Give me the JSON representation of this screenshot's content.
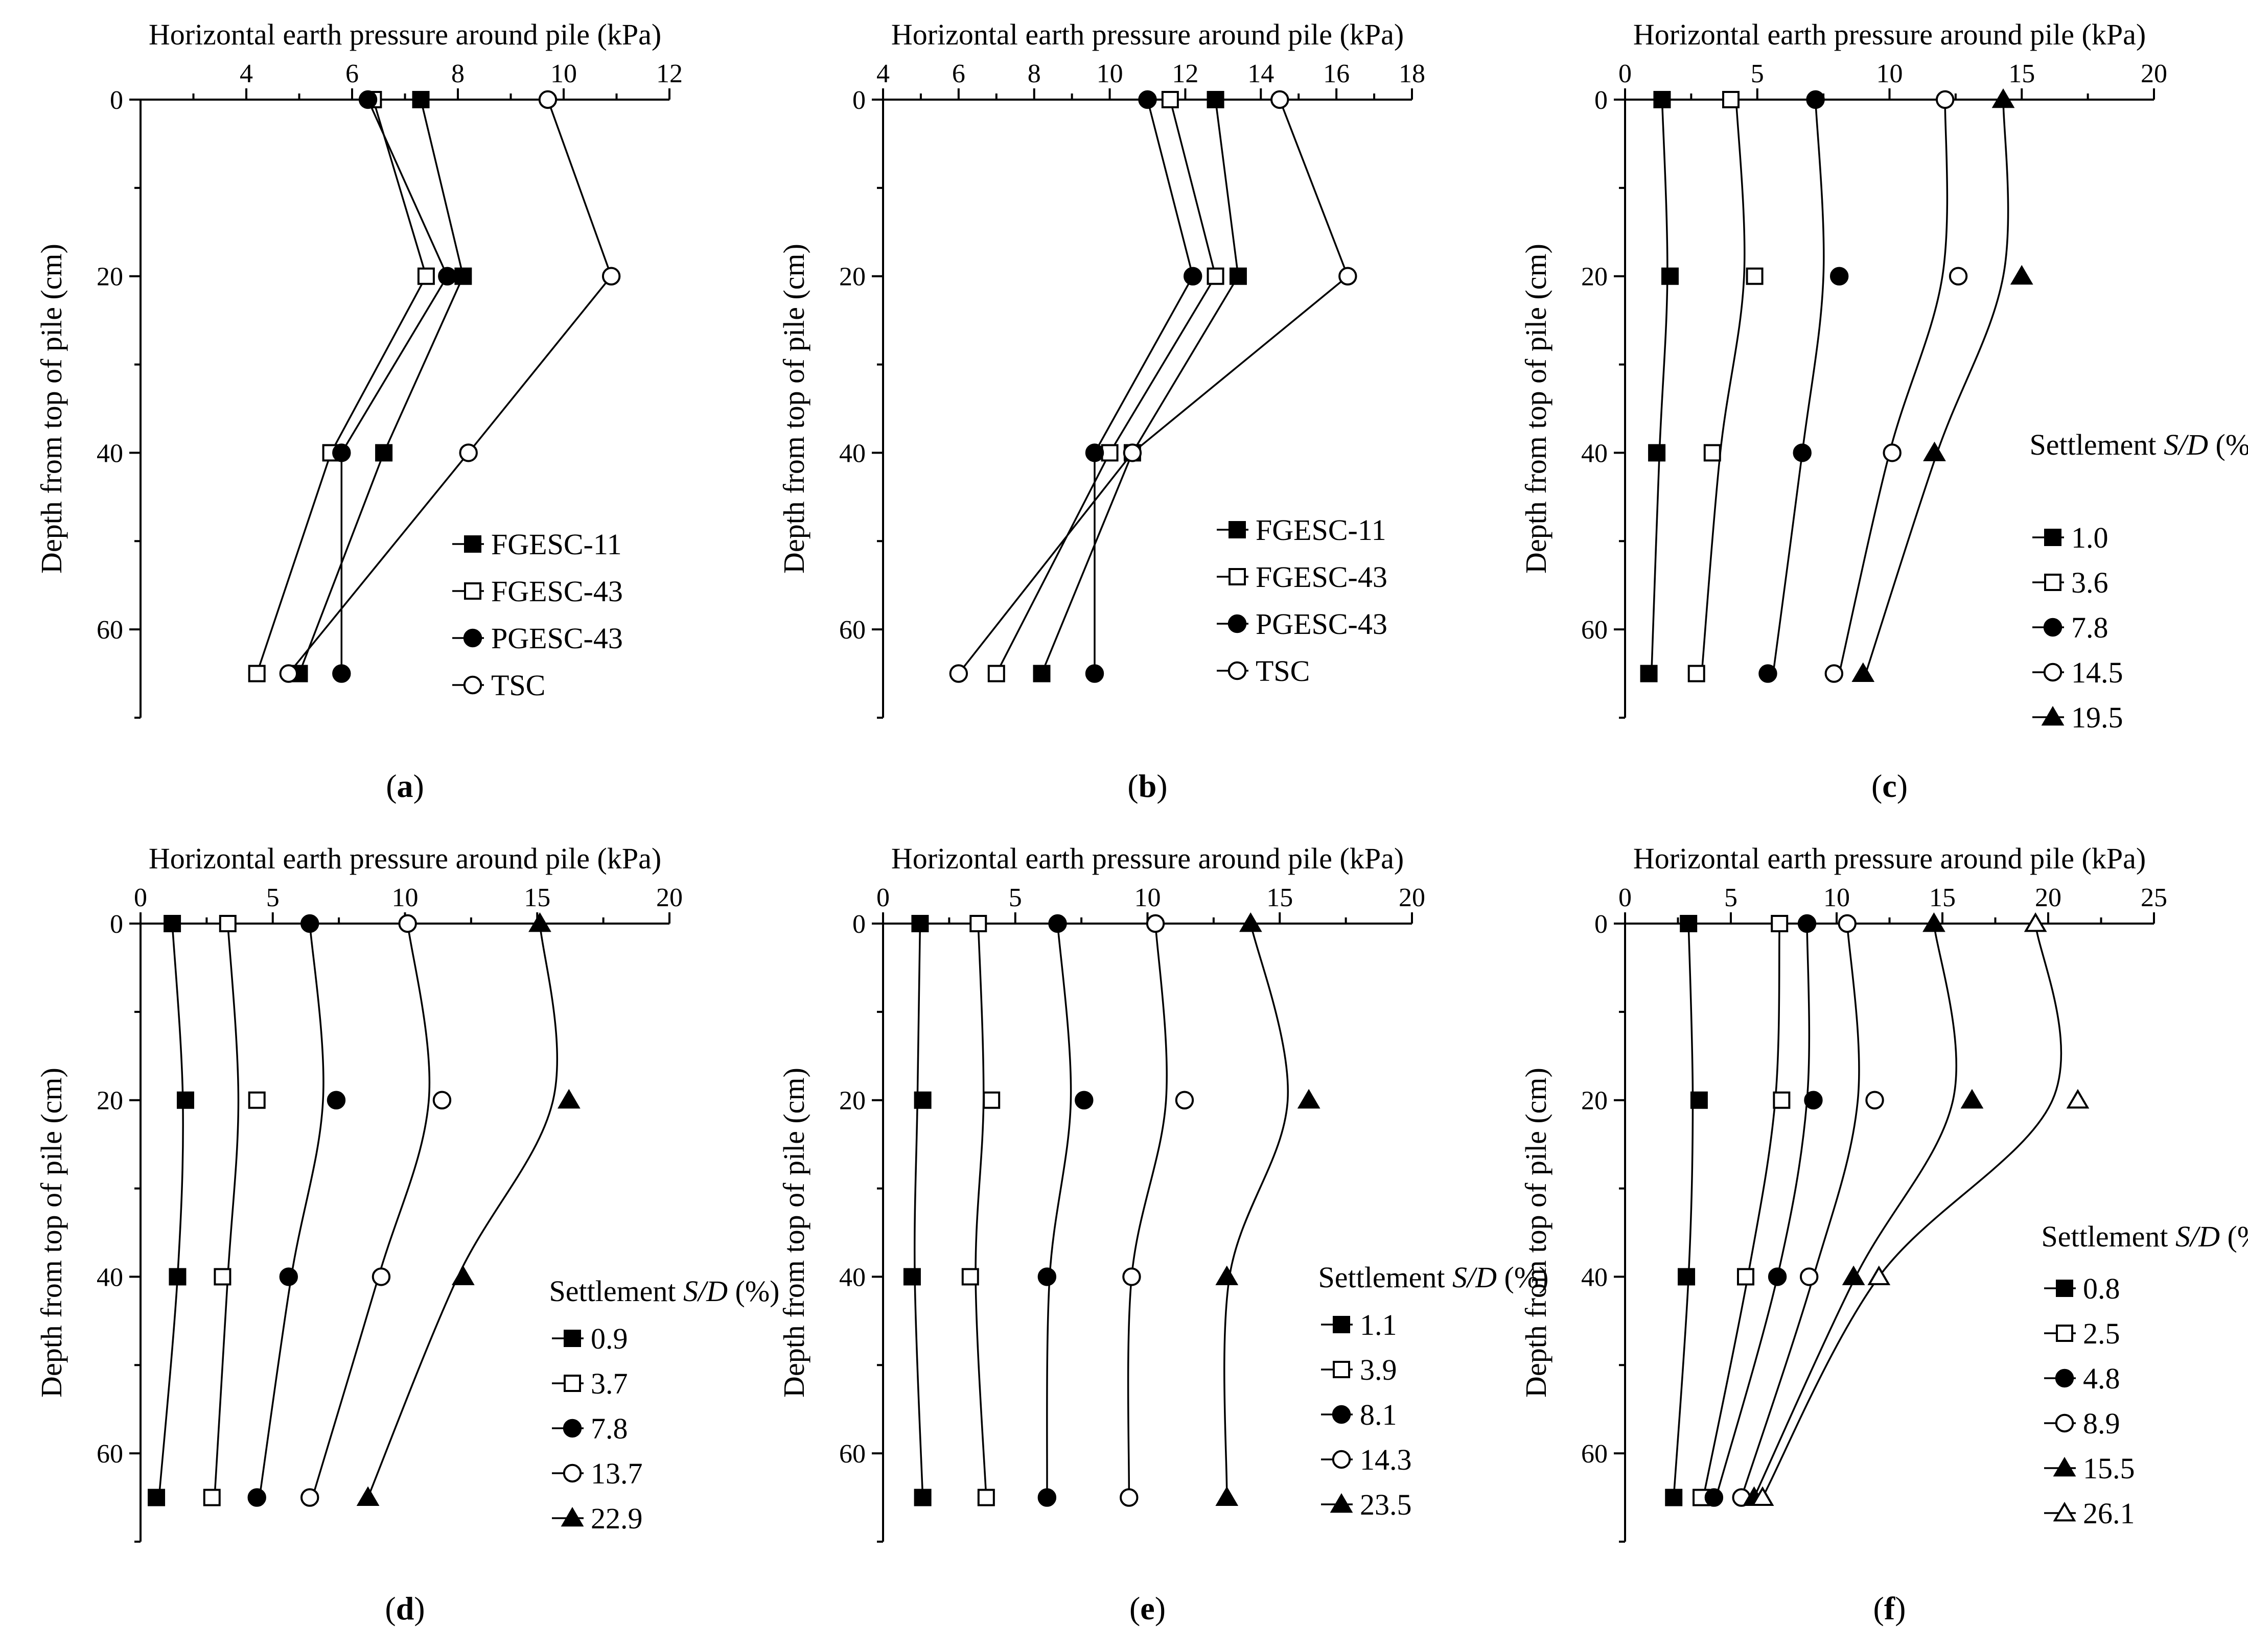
{
  "chart_data": [
    {
      "id": "a",
      "type": "line",
      "panel_label": "a",
      "title": "Horizontal earth pressure around pile (kPa)",
      "xlabel": "Horizontal earth pressure around pile (kPa)",
      "ylabel": "Depth from top of pile (cm)",
      "xlim": [
        2,
        12
      ],
      "xticks": [
        4,
        6,
        8,
        10,
        12
      ],
      "ylim": [
        0,
        70
      ],
      "yticks": [
        0,
        20,
        40,
        60
      ],
      "legend_title": "",
      "curve": "straight",
      "series": [
        {
          "name": "FGESC-11",
          "marker": "square-filled",
          "x": [
            7.3,
            8.1,
            6.6,
            5.0
          ],
          "y": [
            0,
            20,
            40,
            65
          ]
        },
        {
          "name": "FGESC-43",
          "marker": "square-open",
          "x": [
            6.4,
            7.4,
            5.6,
            4.2
          ],
          "y": [
            0,
            20,
            40,
            65
          ]
        },
        {
          "name": "PGESC-43",
          "marker": "circle-filled",
          "x": [
            6.3,
            7.8,
            5.8,
            5.8
          ],
          "y": [
            0,
            20,
            40,
            65
          ]
        },
        {
          "name": "TSC",
          "marker": "circle-open",
          "x": [
            9.7,
            10.9,
            8.2,
            4.8
          ],
          "y": [
            0,
            20,
            40,
            65
          ]
        }
      ]
    },
    {
      "id": "b",
      "type": "line",
      "panel_label": "b",
      "title": "Horizontal earth pressure around pile (kPa)",
      "xlabel": "Horizontal earth pressure around pile (kPa)",
      "ylabel": "Depth from top of pile (cm)",
      "xlim": [
        4,
        18
      ],
      "xticks": [
        4,
        6,
        8,
        10,
        12,
        14,
        16,
        18
      ],
      "ylim": [
        0,
        70
      ],
      "yticks": [
        0,
        20,
        40,
        60
      ],
      "legend_title": "",
      "curve": "straight",
      "series": [
        {
          "name": "FGESC-11",
          "marker": "square-filled",
          "x": [
            12.8,
            13.4,
            10.6,
            8.2
          ],
          "y": [
            0,
            20,
            40,
            65
          ]
        },
        {
          "name": "FGESC-43",
          "marker": "square-open",
          "x": [
            11.6,
            12.8,
            10.0,
            7.0
          ],
          "y": [
            0,
            20,
            40,
            65
          ]
        },
        {
          "name": "PGESC-43",
          "marker": "circle-filled",
          "x": [
            11.0,
            12.2,
            9.6,
            9.6
          ],
          "y": [
            0,
            20,
            40,
            65
          ]
        },
        {
          "name": "TSC",
          "marker": "circle-open",
          "x": [
            14.5,
            16.3,
            10.6,
            6.0
          ],
          "y": [
            0,
            20,
            40,
            65
          ]
        }
      ]
    },
    {
      "id": "c",
      "type": "scatter",
      "panel_label": "c",
      "title": "Horizontal earth pressure around pile (kPa)",
      "xlabel": "Horizontal earth pressure around pile (kPa)",
      "ylabel": "Depth from top of pile (cm)",
      "xlim": [
        0,
        20
      ],
      "xticks": [
        0,
        5,
        10,
        15,
        20
      ],
      "ylim": [
        0,
        70
      ],
      "yticks": [
        0,
        20,
        40,
        60
      ],
      "legend_title": "Settlement S/D (%)",
      "curve": "smooth",
      "series": [
        {
          "name": "1.0",
          "marker": "square-filled",
          "x": [
            1.4,
            1.7,
            1.2,
            0.9
          ],
          "y": [
            0,
            20,
            40,
            65
          ],
          "fit": [
            1.4,
            1.6,
            1.3,
            1.0
          ]
        },
        {
          "name": "3.6",
          "marker": "square-open",
          "x": [
            4.0,
            4.9,
            3.3,
            2.7
          ],
          "y": [
            0,
            20,
            40,
            65
          ],
          "fit": [
            4.2,
            4.5,
            3.6,
            2.9
          ]
        },
        {
          "name": "7.8",
          "marker": "circle-filled",
          "x": [
            7.2,
            8.1,
            6.7,
            5.4
          ],
          "y": [
            0,
            20,
            40,
            65
          ],
          "fit": [
            7.2,
            7.5,
            6.7,
            5.6
          ]
        },
        {
          "name": "14.5",
          "marker": "circle-open",
          "x": [
            12.1,
            12.6,
            10.1,
            7.9
          ],
          "y": [
            0,
            20,
            40,
            65
          ],
          "fit": [
            12.1,
            12.0,
            10.0,
            8.1
          ]
        },
        {
          "name": "19.5",
          "marker": "triangle-filled",
          "x": [
            14.3,
            15.0,
            11.7,
            9.0
          ],
          "y": [
            0,
            20,
            40,
            65
          ],
          "fit": [
            14.3,
            14.3,
            11.8,
            9.1
          ]
        }
      ]
    },
    {
      "id": "d",
      "type": "scatter",
      "panel_label": "d",
      "title": "Horizontal earth pressure around pile (kPa)",
      "xlabel": "Horizontal earth pressure around pile (kPa)",
      "ylabel": "Depth from top of pile (cm)",
      "xlim": [
        0,
        20
      ],
      "xticks": [
        0,
        5,
        10,
        15,
        20
      ],
      "ylim": [
        0,
        70
      ],
      "yticks": [
        0,
        20,
        40,
        60
      ],
      "legend_title": "Settlement S/D (%)",
      "curve": "smooth",
      "series": [
        {
          "name": "0.9",
          "marker": "square-filled",
          "x": [
            1.2,
            1.7,
            1.4,
            0.6
          ],
          "y": [
            0,
            20,
            40,
            65
          ],
          "fit": [
            1.2,
            1.6,
            1.4,
            0.7
          ]
        },
        {
          "name": "3.7",
          "marker": "square-open",
          "x": [
            3.3,
            4.4,
            3.1,
            2.7
          ],
          "y": [
            0,
            20,
            40,
            65
          ],
          "fit": [
            3.3,
            3.7,
            3.3,
            2.8
          ]
        },
        {
          "name": "7.8",
          "marker": "circle-filled",
          "x": [
            6.4,
            7.4,
            5.6,
            4.4
          ],
          "y": [
            0,
            20,
            40,
            65
          ],
          "fit": [
            6.4,
            6.9,
            5.7,
            4.5
          ]
        },
        {
          "name": "13.7",
          "marker": "circle-open",
          "x": [
            10.1,
            11.4,
            9.1,
            6.4
          ],
          "y": [
            0,
            20,
            40,
            65
          ],
          "fit": [
            10.1,
            10.9,
            9.0,
            6.5
          ]
        },
        {
          "name": "22.9",
          "marker": "triangle-filled",
          "x": [
            15.1,
            16.2,
            12.2,
            8.6
          ],
          "y": [
            0,
            20,
            40,
            65
          ],
          "fit": [
            15.1,
            15.6,
            12.0,
            8.6
          ]
        }
      ]
    },
    {
      "id": "e",
      "type": "scatter",
      "panel_label": "e",
      "title": "Horizontal earth pressure around pile (kPa)",
      "xlabel": "Horizontal earth pressure around pile (kPa)",
      "ylabel": "Depth from top of pile (cm)",
      "xlim": [
        0,
        20
      ],
      "xticks": [
        0,
        5,
        10,
        15,
        20
      ],
      "ylim": [
        0,
        70
      ],
      "yticks": [
        0,
        20,
        40,
        60
      ],
      "legend_title": "Settlement S/D (%)",
      "curve": "smooth",
      "series": [
        {
          "name": "1.1",
          "marker": "square-filled",
          "x": [
            1.4,
            1.5,
            1.1,
            1.5
          ],
          "y": [
            0,
            20,
            40,
            65
          ],
          "fit": [
            1.4,
            1.3,
            1.2,
            1.5
          ]
        },
        {
          "name": "3.9",
          "marker": "square-open",
          "x": [
            3.6,
            4.1,
            3.3,
            3.9
          ],
          "y": [
            0,
            20,
            40,
            65
          ],
          "fit": [
            3.6,
            3.8,
            3.5,
            3.9
          ]
        },
        {
          "name": "8.1",
          "marker": "circle-filled",
          "x": [
            6.6,
            7.6,
            6.2,
            6.2
          ],
          "y": [
            0,
            20,
            40,
            65
          ],
          "fit": [
            6.6,
            7.1,
            6.3,
            6.2
          ]
        },
        {
          "name": "14.3",
          "marker": "circle-open",
          "x": [
            10.3,
            11.4,
            9.4,
            9.3
          ],
          "y": [
            0,
            20,
            40,
            65
          ],
          "fit": [
            10.3,
            10.7,
            9.4,
            9.3
          ]
        },
        {
          "name": "23.5",
          "marker": "triangle-filled",
          "x": [
            13.9,
            16.1,
            13.0,
            13.0
          ],
          "y": [
            0,
            20,
            40,
            65
          ],
          "fit": [
            13.9,
            15.3,
            13.1,
            13.0
          ]
        }
      ]
    },
    {
      "id": "f",
      "type": "scatter",
      "panel_label": "f",
      "title": "Horizontal earth pressure around pile (kPa)",
      "xlabel": "Horizontal earth pressure around pile (kPa)",
      "ylabel": "Depth from top of pile (cm)",
      "xlim": [
        0,
        25
      ],
      "xticks": [
        0,
        5,
        10,
        15,
        20,
        25
      ],
      "ylim": [
        0,
        70
      ],
      "yticks": [
        0,
        20,
        40,
        60
      ],
      "legend_title": "Settlement S/D (%)",
      "curve": "smooth",
      "series": [
        {
          "name": "0.8",
          "marker": "square-filled",
          "x": [
            3.0,
            3.5,
            2.9,
            2.3
          ],
          "y": [
            0,
            20,
            40,
            65
          ],
          "fit": [
            3.0,
            3.2,
            3.0,
            2.3
          ]
        },
        {
          "name": "2.5",
          "marker": "square-open",
          "x": [
            7.3,
            7.4,
            5.7,
            3.6
          ],
          "y": [
            0,
            20,
            40,
            65
          ],
          "fit": [
            7.3,
            7.1,
            5.8,
            3.7
          ]
        },
        {
          "name": "4.8",
          "marker": "circle-filled",
          "x": [
            8.6,
            8.9,
            7.2,
            4.2
          ],
          "y": [
            0,
            20,
            40,
            65
          ],
          "fit": [
            8.6,
            8.6,
            7.2,
            4.3
          ]
        },
        {
          "name": "8.9",
          "marker": "circle-open",
          "x": [
            10.5,
            11.8,
            8.7,
            5.5
          ],
          "y": [
            0,
            20,
            40,
            65
          ],
          "fit": [
            10.5,
            11.0,
            8.9,
            5.5
          ]
        },
        {
          "name": "15.5",
          "marker": "triangle-filled",
          "x": [
            14.6,
            16.4,
            10.8,
            6.1
          ],
          "y": [
            0,
            20,
            40,
            65
          ],
          "fit": [
            14.6,
            15.5,
            10.9,
            6.1
          ]
        },
        {
          "name": "26.1",
          "marker": "triangle-open",
          "x": [
            19.4,
            21.4,
            12.0,
            6.5
          ],
          "y": [
            0,
            20,
            40,
            65
          ],
          "fit": [
            19.4,
            20.2,
            12.0,
            6.5
          ]
        }
      ]
    }
  ]
}
